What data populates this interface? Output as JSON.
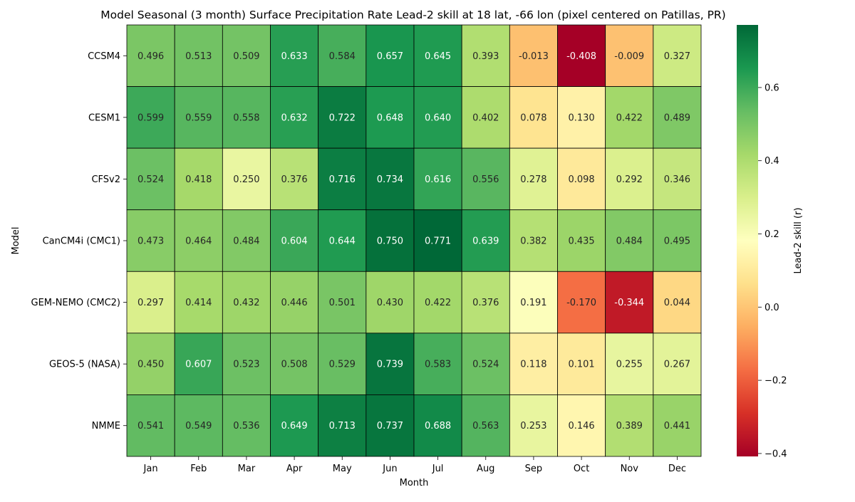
{
  "chart_data": {
    "type": "heatmap",
    "title": "Model Seasonal (3 month) Surface Precipitation Rate Lead-2 skill at 18 lat, -66 lon (pixel centered on Patillas, PR)",
    "xlabel": "Month",
    "ylabel": "Model",
    "colorbar_label": "Lead-2 skill (r)",
    "colormap": "RdYlGn",
    "vmin": -0.408,
    "vmax": 0.771,
    "colorbar_ticks": [
      "−0.4",
      "−0.2",
      "0.0",
      "0.2",
      "0.4",
      "0.6"
    ],
    "colorbar_tick_values": [
      -0.4,
      -0.2,
      0.0,
      0.2,
      0.4,
      0.6
    ],
    "x_categories": [
      "Jan",
      "Feb",
      "Mar",
      "Apr",
      "May",
      "Jun",
      "Jul",
      "Aug",
      "Sep",
      "Oct",
      "Nov",
      "Dec"
    ],
    "y_categories": [
      "CCSM4",
      "CESM1",
      "CFSv2",
      "CanCM4i (CMC1)",
      "GEM-NEMO (CMC2)",
      "GEOS-5 (NASA)",
      "NMME"
    ],
    "values": [
      [
        0.496,
        0.513,
        0.509,
        0.633,
        0.584,
        0.657,
        0.645,
        0.393,
        -0.013,
        -0.408,
        -0.009,
        0.327
      ],
      [
        0.599,
        0.559,
        0.558,
        0.632,
        0.722,
        0.648,
        0.64,
        0.402,
        0.078,
        0.13,
        0.422,
        0.489
      ],
      [
        0.524,
        0.418,
        0.25,
        0.376,
        0.716,
        0.734,
        0.616,
        0.556,
        0.278,
        0.098,
        0.292,
        0.346
      ],
      [
        0.473,
        0.464,
        0.484,
        0.604,
        0.644,
        0.75,
        0.771,
        0.639,
        0.382,
        0.435,
        0.484,
        0.495
      ],
      [
        0.297,
        0.414,
        0.432,
        0.446,
        0.501,
        0.43,
        0.422,
        0.376,
        0.191,
        -0.17,
        -0.344,
        0.044
      ],
      [
        0.45,
        0.607,
        0.523,
        0.508,
        0.529,
        0.739,
        0.583,
        0.524,
        0.118,
        0.101,
        0.255,
        0.267
      ],
      [
        0.541,
        0.549,
        0.536,
        0.649,
        0.713,
        0.737,
        0.688,
        0.563,
        0.253,
        0.146,
        0.389,
        0.441
      ]
    ],
    "value_labels": [
      [
        "0.496",
        "0.513",
        "0.509",
        "0.633",
        "0.584",
        "0.657",
        "0.645",
        "0.393",
        "-0.013",
        "-0.408",
        "-0.009",
        "0.327"
      ],
      [
        "0.599",
        "0.559",
        "0.558",
        "0.632",
        "0.722",
        "0.648",
        "0.640",
        "0.402",
        "0.078",
        "0.130",
        "0.422",
        "0.489"
      ],
      [
        "0.524",
        "0.418",
        "0.250",
        "0.376",
        "0.716",
        "0.734",
        "0.616",
        "0.556",
        "0.278",
        "0.098",
        "0.292",
        "0.346"
      ],
      [
        "0.473",
        "0.464",
        "0.484",
        "0.604",
        "0.644",
        "0.750",
        "0.771",
        "0.639",
        "0.382",
        "0.435",
        "0.484",
        "0.495"
      ],
      [
        "0.297",
        "0.414",
        "0.432",
        "0.446",
        "0.501",
        "0.430",
        "0.422",
        "0.376",
        "0.191",
        "-0.170",
        "-0.344",
        "0.044"
      ],
      [
        "0.450",
        "0.607",
        "0.523",
        "0.508",
        "0.529",
        "0.739",
        "0.583",
        "0.524",
        "0.118",
        "0.101",
        "0.255",
        "0.267"
      ],
      [
        "0.541",
        "0.549",
        "0.536",
        "0.649",
        "0.713",
        "0.737",
        "0.688",
        "0.563",
        "0.253",
        "0.146",
        "0.389",
        "0.441"
      ]
    ],
    "legend": "colorbar-right",
    "grid": false
  }
}
